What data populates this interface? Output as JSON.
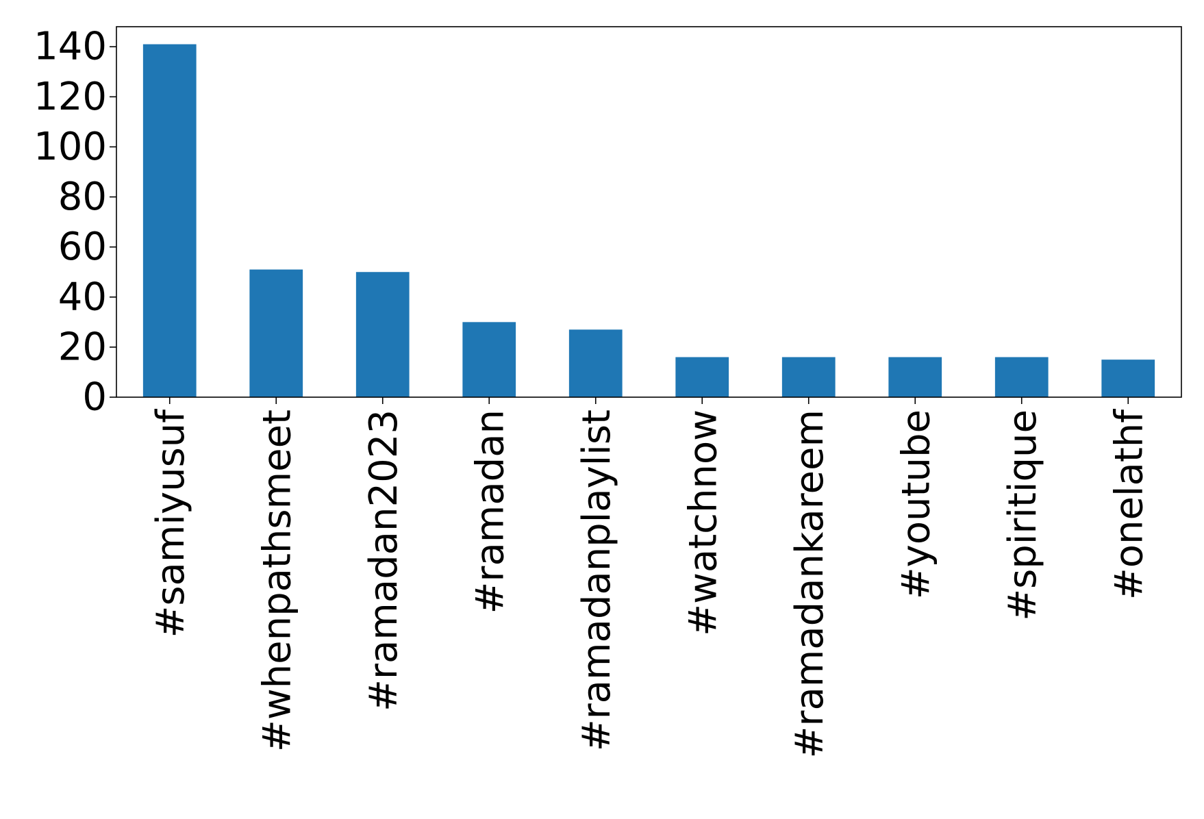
{
  "chart_data": {
    "type": "bar",
    "title": "",
    "xlabel": "",
    "ylabel": "",
    "categories": [
      "#samiyusuf",
      "#whenpathsmeet",
      "#ramadan2023",
      "#ramadan",
      "#ramadanplaylist",
      "#watchnow",
      "#ramadankareem",
      "#youtube",
      "#spiritique",
      "#onelathf"
    ],
    "values": [
      141,
      51,
      50,
      30,
      27,
      16,
      16,
      16,
      16,
      15
    ],
    "ylim": [
      0,
      148
    ],
    "yticks": [
      0,
      20,
      40,
      60,
      80,
      100,
      120,
      140
    ],
    "bar_color": "#1f77b4",
    "grid": false,
    "legend": "none"
  }
}
